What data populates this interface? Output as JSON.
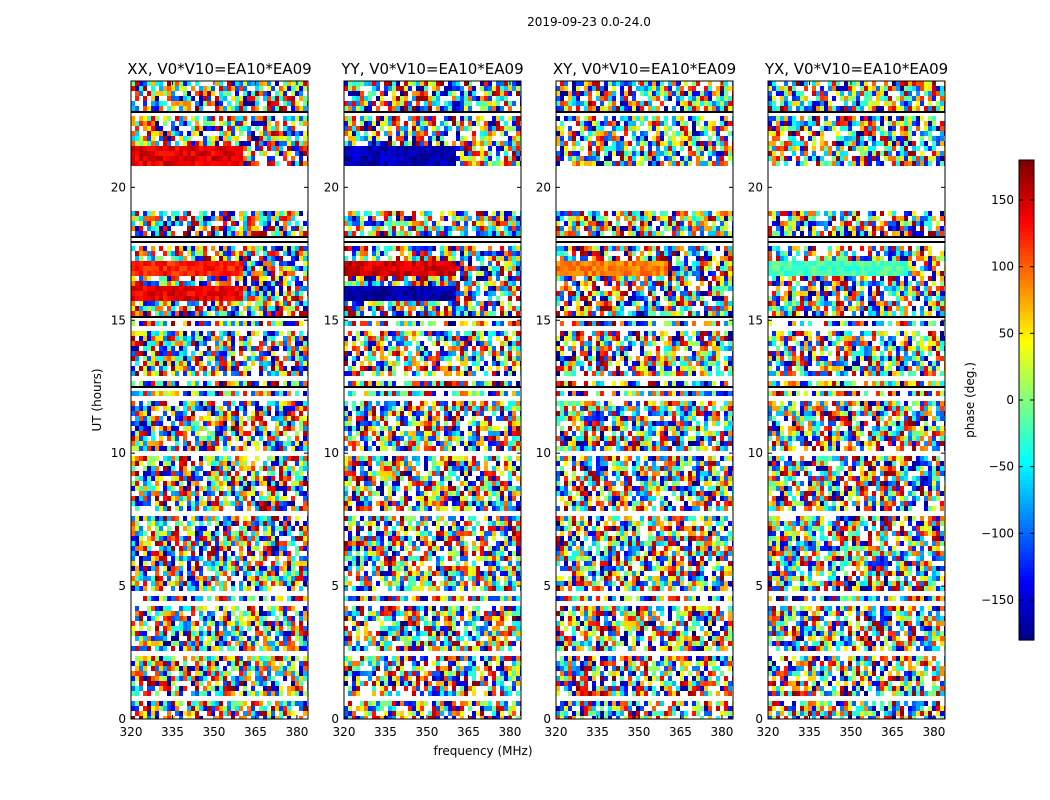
{
  "chart_data": {
    "type": "heatmap",
    "suptitle": "2019-09-23 0.0-24.0",
    "xlabel": "frequency (MHz)",
    "ylabel": "UT (hours)",
    "xlim": [
      320,
      384
    ],
    "ylim": [
      0,
      24
    ],
    "xticks": [
      "320",
      "335",
      "350",
      "365",
      "380"
    ],
    "xtick_values": [
      320,
      335,
      350,
      365,
      380
    ],
    "yticks": [
      "0",
      "5",
      "10",
      "15",
      "20"
    ],
    "ytick_values": [
      0,
      5,
      10,
      15,
      20
    ],
    "colorbar": {
      "label": "phase (deg.)",
      "range": [
        -180,
        180
      ],
      "ticks": [
        "150",
        "100",
        "50",
        "0",
        "−50",
        "−100",
        "−150"
      ],
      "tick_values": [
        150,
        100,
        50,
        0,
        -50,
        -100,
        -150
      ],
      "colormap": "jet"
    },
    "panels": [
      {
        "title": "XX, V0*V10=EA10*EA09",
        "polarization": "XX",
        "coherent_bands": [
          {
            "ut": [
              20.85,
              21.6
            ],
            "freq": [
              320,
              361
            ],
            "phase": 145
          },
          {
            "ut": [
              20.85,
              21.6
            ],
            "freq": [
              380,
              384
            ],
            "phase": 145
          },
          {
            "ut": [
              16.6,
              17.3
            ],
            "freq": [
              320,
              361
            ],
            "phase": 125
          },
          {
            "ut": [
              15.8,
              16.2
            ],
            "freq": [
              320,
              361
            ],
            "phase": 140
          },
          {
            "ut": [
              15.8,
              16.2
            ],
            "freq": [
              380,
              384
            ],
            "phase": 140
          }
        ]
      },
      {
        "title": "YY, V0*V10=EA10*EA09",
        "polarization": "YY",
        "coherent_bands": [
          {
            "ut": [
              20.85,
              21.6
            ],
            "freq": [
              320,
              361
            ],
            "phase": -160
          },
          {
            "ut": [
              16.6,
              17.3
            ],
            "freq": [
              320,
              361
            ],
            "phase": 150
          },
          {
            "ut": [
              15.8,
              16.2
            ],
            "freq": [
              320,
              361
            ],
            "phase": -165
          }
        ]
      },
      {
        "title": "XY, V0*V10=EA10*EA09",
        "polarization": "XY",
        "coherent_bands": [
          {
            "ut": [
              16.6,
              17.3
            ],
            "freq": [
              320,
              360
            ],
            "phase": 90
          }
        ]
      },
      {
        "title": "YX, V0*V10=EA10*EA09",
        "polarization": "YX",
        "coherent_bands": [
          {
            "ut": [
              16.6,
              17.3
            ],
            "freq": [
              320,
              370
            ],
            "phase": -20
          }
        ]
      }
    ],
    "blank_ut_ranges": [
      [
        19.2,
        20.85
      ],
      [
        23.0,
        23.15
      ],
      [
        11.0,
        11.08
      ]
    ]
  }
}
